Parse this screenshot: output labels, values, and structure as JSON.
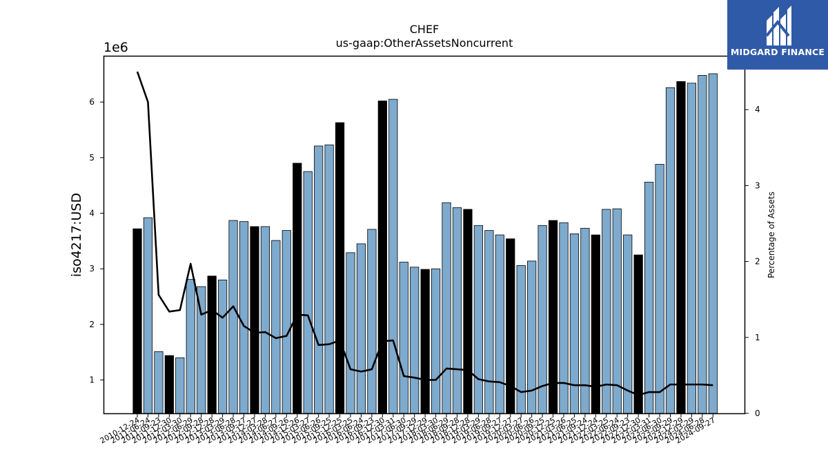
{
  "brand": {
    "name": "MIDGARD FINANCE",
    "bg_color": "#2f5aa8"
  },
  "chart_data": {
    "type": "bar",
    "title": "CHEF",
    "subtitle": "us-gaap:OtherAssetsNoncurrent",
    "ylabel": "iso4217:USD",
    "y2label": "Percentage of Assets",
    "y_offset_label": "1e6",
    "ylim": [
      0.4,
      6.82
    ],
    "y2lim": [
      0,
      4.7
    ],
    "yticks": [
      1,
      2,
      3,
      4,
      5,
      6
    ],
    "y2ticks": [
      0,
      1,
      2,
      3,
      4
    ],
    "bar_color_quarterly": "#7eaacd",
    "bar_color_annual": "#000000",
    "line_color": "#000000",
    "categories": [
      "2010-12-24",
      "2011-06-24",
      "2011-09-23",
      "2011-12-30",
      "2012-03-30",
      "2012-06-29",
      "2012-09-28",
      "2012-12-28",
      "2013-03-29",
      "2013-06-28",
      "2013-09-27",
      "2013-12-27",
      "2014-03-28",
      "2014-06-27",
      "2014-09-26",
      "2014-12-26",
      "2015-03-27",
      "2015-06-26",
      "2015-09-25",
      "2015-12-25",
      "2016-03-25",
      "2016-06-24",
      "2016-09-23",
      "2016-12-30",
      "2017-03-31",
      "2017-06-30",
      "2017-09-29",
      "2017-12-29",
      "2018-03-30",
      "2018-06-29",
      "2018-09-28",
      "2018-12-28",
      "2019-03-29",
      "2019-06-28",
      "2019-09-27",
      "2019-12-27",
      "2020-03-27",
      "2020-06-26",
      "2020-09-25",
      "2020-12-25",
      "2021-03-26",
      "2021-06-25",
      "2021-09-24",
      "2021-12-24",
      "2022-03-25",
      "2022-06-24",
      "2022-09-23",
      "2022-12-30",
      "2023-03-31",
      "2023-06-30",
      "2023-09-29",
      "2023-12-29",
      "2024-03-29",
      "2024-06-28",
      "2024-09-27"
    ],
    "series": [
      {
        "kind": "bar",
        "values": [
          3.72,
          3.92,
          1.51,
          1.44,
          1.4,
          2.81,
          2.68,
          2.87,
          2.8,
          3.87,
          3.85,
          3.76,
          3.76,
          3.51,
          3.69,
          4.9,
          4.75,
          5.21,
          5.23,
          5.63,
          3.29,
          3.45,
          3.71,
          6.02,
          6.05,
          3.12,
          3.03,
          2.99,
          3.0,
          4.19,
          4.1,
          4.07,
          3.78,
          3.69,
          3.61,
          3.54,
          3.06,
          3.14,
          3.78,
          3.87,
          3.83,
          3.63,
          3.73,
          3.61,
          4.07,
          4.08,
          3.61,
          3.25,
          4.56,
          4.88,
          6.26,
          6.37,
          6.34,
          6.48,
          6.51
        ],
        "annual": [
          true,
          false,
          false,
          true,
          false,
          false,
          false,
          true,
          false,
          false,
          false,
          true,
          false,
          false,
          false,
          true,
          false,
          false,
          false,
          true,
          false,
          false,
          false,
          true,
          false,
          false,
          false,
          true,
          false,
          false,
          false,
          true,
          false,
          false,
          false,
          true,
          false,
          false,
          false,
          true,
          false,
          false,
          false,
          true,
          false,
          false,
          false,
          true,
          false,
          false,
          false,
          true,
          false,
          false,
          false
        ]
      },
      {
        "kind": "line",
        "axis": "right",
        "values": [
          4.5,
          4.1,
          1.56,
          1.34,
          1.36,
          1.97,
          1.3,
          1.36,
          1.26,
          1.41,
          1.15,
          1.06,
          1.07,
          0.99,
          1.02,
          1.3,
          1.29,
          0.9,
          0.91,
          0.96,
          0.58,
          0.55,
          0.58,
          0.95,
          0.96,
          0.49,
          0.47,
          0.44,
          0.44,
          0.59,
          0.58,
          0.57,
          0.45,
          0.42,
          0.41,
          0.36,
          0.28,
          0.3,
          0.36,
          0.4,
          0.4,
          0.37,
          0.37,
          0.35,
          0.38,
          0.37,
          0.3,
          0.24,
          0.28,
          0.28,
          0.38,
          0.38,
          0.38,
          0.38,
          0.37
        ]
      }
    ],
    "grid": false
  }
}
